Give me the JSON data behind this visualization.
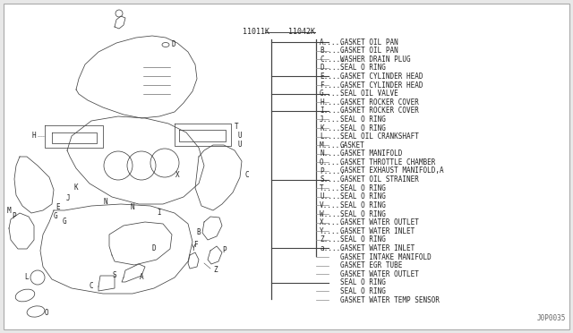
{
  "bg_color": "#e8e8e8",
  "panel_color": "#ffffff",
  "text_color": "#222222",
  "line_color": "#444444",
  "tick_color": "#888888",
  "font_size_legend": 5.8,
  "font_size_pn": 6.0,
  "legend_items": [
    [
      "A",
      "GASKET OIL PAN"
    ],
    [
      "B",
      "GASKET OIL PAN"
    ],
    [
      "C",
      "WASHER DRAIN PLUG"
    ],
    [
      "D",
      "SEAL O RING"
    ],
    [
      "E",
      "GASKET CYLINDER HEAD"
    ],
    [
      "F",
      "GASKET CYLINDER HEAD"
    ],
    [
      "G",
      "SEAL OIL VALVE"
    ],
    [
      "H",
      "GASKET ROCKER COVER"
    ],
    [
      "I",
      "GASKET ROCKER COVER"
    ],
    [
      "J",
      "SEAL O RING"
    ],
    [
      "K",
      "SEAL O RING"
    ],
    [
      "L",
      "SEAL OIL CRANKSHAFT"
    ],
    [
      "M",
      "GASKET"
    ],
    [
      "N",
      "GASKET MANIFOLD"
    ],
    [
      "O",
      "GASKET THROTTLE CHAMBER"
    ],
    [
      "P",
      "GASKET EXHAUST MANIFOLD,A"
    ],
    [
      "S",
      "GASKET OIL STRAINER"
    ],
    [
      "T",
      "SEAL O RING"
    ],
    [
      "U",
      "SEAL O RING"
    ],
    [
      "V",
      "SEAL O RING"
    ],
    [
      "W",
      "SEAL O RING"
    ],
    [
      "X",
      "GASKET WATER OUTLET"
    ],
    [
      "Y",
      "GASKET WATER INLET"
    ],
    [
      "Z",
      "SEAL O RING"
    ],
    [
      "a",
      "GASKET WATER INLET"
    ],
    [
      "",
      "GASKET INTAKE MANIFOLD"
    ],
    [
      "",
      "GASKET EGR TUBE"
    ],
    [
      "",
      "GASKET WATER OUTLET"
    ],
    [
      "",
      "SEAL O RING"
    ],
    [
      "",
      "SEAL O RING"
    ],
    [
      "",
      "GASKET WATER TEMP SENSOR"
    ]
  ],
  "part_numbers": [
    "11011K",
    "11042K"
  ],
  "footer": "J0P0035",
  "divider_rows": [
    0,
    4,
    6,
    8,
    16,
    24,
    28
  ]
}
